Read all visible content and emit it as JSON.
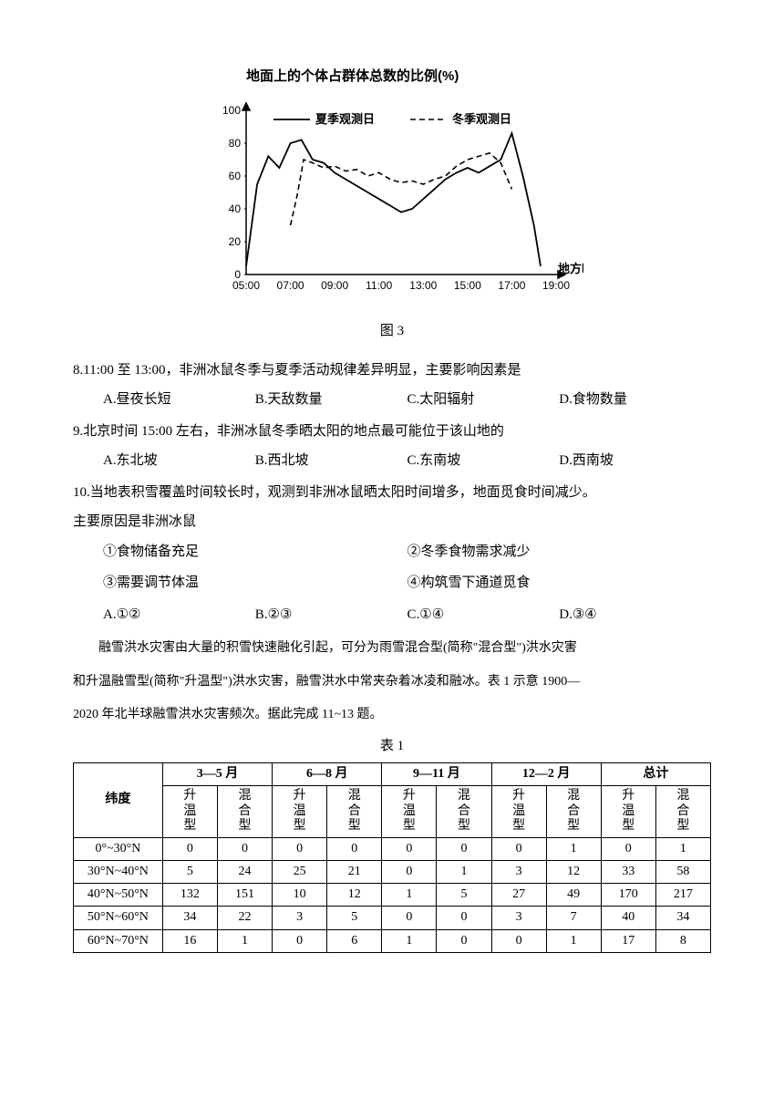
{
  "chart": {
    "type": "line",
    "title": "地面上的个体占群体总数的比例(%)",
    "legend": {
      "summer": "夏季观测日",
      "winter": "冬季观测日"
    },
    "xaxis_label": "地方时",
    "xaxis_ticks": [
      "05:00",
      "07:00",
      "09:00",
      "11:00",
      "13:00",
      "15:00",
      "17:00",
      "19:00"
    ],
    "yaxis_ticks": [
      0,
      20,
      40,
      60,
      80,
      100
    ],
    "ylim": [
      0,
      100
    ],
    "series": {
      "summer": {
        "style": "solid",
        "color": "#000000",
        "width": 1.8,
        "points": [
          [
            5,
            5
          ],
          [
            5.5,
            55
          ],
          [
            6,
            72
          ],
          [
            6.5,
            65
          ],
          [
            7,
            80
          ],
          [
            7.5,
            82
          ],
          [
            8,
            70
          ],
          [
            8.5,
            68
          ],
          [
            9,
            62
          ],
          [
            9.5,
            58
          ],
          [
            10,
            54
          ],
          [
            10.5,
            50
          ],
          [
            11,
            46
          ],
          [
            11.5,
            42
          ],
          [
            12,
            38
          ],
          [
            12.5,
            40
          ],
          [
            13,
            46
          ],
          [
            13.5,
            52
          ],
          [
            14,
            58
          ],
          [
            14.5,
            62
          ],
          [
            15,
            65
          ],
          [
            15.5,
            62
          ],
          [
            16,
            66
          ],
          [
            16.5,
            70
          ],
          [
            17,
            86
          ],
          [
            17.5,
            60
          ],
          [
            18,
            30
          ],
          [
            18.3,
            5
          ]
        ]
      },
      "winter": {
        "style": "dashed",
        "color": "#000000",
        "width": 1.6,
        "points": [
          [
            7,
            30
          ],
          [
            7.3,
            48
          ],
          [
            7.6,
            70
          ],
          [
            8,
            68
          ],
          [
            8.5,
            65
          ],
          [
            9,
            66
          ],
          [
            9.5,
            63
          ],
          [
            10,
            64
          ],
          [
            10.5,
            60
          ],
          [
            11,
            62
          ],
          [
            11.5,
            58
          ],
          [
            12,
            56
          ],
          [
            12.5,
            57
          ],
          [
            13,
            55
          ],
          [
            13.5,
            58
          ],
          [
            14,
            60
          ],
          [
            14.5,
            66
          ],
          [
            15,
            70
          ],
          [
            15.5,
            72
          ],
          [
            16,
            74
          ],
          [
            16.5,
            68
          ],
          [
            17,
            52
          ]
        ]
      }
    },
    "grid_color": "#000000",
    "background_color": "#ffffff",
    "label_fontsize": 12
  },
  "fig_caption": "图 3",
  "q8": {
    "stem": "8.11:00 至 13:00，非洲冰鼠冬季与夏季活动规律差异明显，主要影响因素是",
    "A": "A.昼夜长短",
    "B": "B.天敌数量",
    "C": "C.太阳辐射",
    "D": "D.食物数量"
  },
  "q9": {
    "stem": "9.北京时间 15:00 左右，非洲冰鼠冬季晒太阳的地点最可能位于该山地的",
    "A": "A.东北坡",
    "B": "B.西北坡",
    "C": "C.东南坡",
    "D": "D.西南坡"
  },
  "q10": {
    "stem1": "10.当地表积雪覆盖时间较长时，观测到非洲冰鼠晒太阳时间增多，地面觅食时间减少。",
    "stem2": "主要原因是非洲冰鼠",
    "i1": "①食物储备充足",
    "i2": "②冬季食物需求减少",
    "i3": "③需要调节体温",
    "i4": "④构筑雪下通道觅食",
    "A": "A.①②",
    "B": "B.②③",
    "C": "C.①④",
    "D": "D.③④"
  },
  "passage1": "融雪洪水灾害由大量的积雪快速融化引起，可分为雨雪混合型(简称\"混合型\")洪水灾害",
  "passage2": "和升温融雪型(简称\"升温型\")洪水灾害，融雪洪水中常夹杂着冰凌和融冰。表 1 示意 1900—",
  "passage3": "2020 年北半球融雪洪水灾害频次。据此完成 11~13 题。",
  "table": {
    "caption": "表 1",
    "row_header": "纬度",
    "periods": [
      "3—5 月",
      "6—8 月",
      "9—11 月",
      "12—2 月",
      "总计"
    ],
    "sub": {
      "a": "升温型",
      "b": "混合型"
    },
    "rows": [
      {
        "lat": "0°~30°N",
        "v": [
          0,
          0,
          0,
          0,
          0,
          0,
          0,
          1,
          0,
          1
        ]
      },
      {
        "lat": "30°N~40°N",
        "v": [
          5,
          24,
          25,
          21,
          0,
          1,
          3,
          12,
          33,
          58
        ]
      },
      {
        "lat": "40°N~50°N",
        "v": [
          132,
          151,
          10,
          12,
          1,
          5,
          27,
          49,
          170,
          217
        ]
      },
      {
        "lat": "50°N~60°N",
        "v": [
          34,
          22,
          3,
          5,
          0,
          0,
          3,
          7,
          40,
          34
        ]
      },
      {
        "lat": "60°N~70°N",
        "v": [
          16,
          1,
          0,
          6,
          1,
          0,
          0,
          1,
          17,
          8
        ]
      }
    ]
  }
}
